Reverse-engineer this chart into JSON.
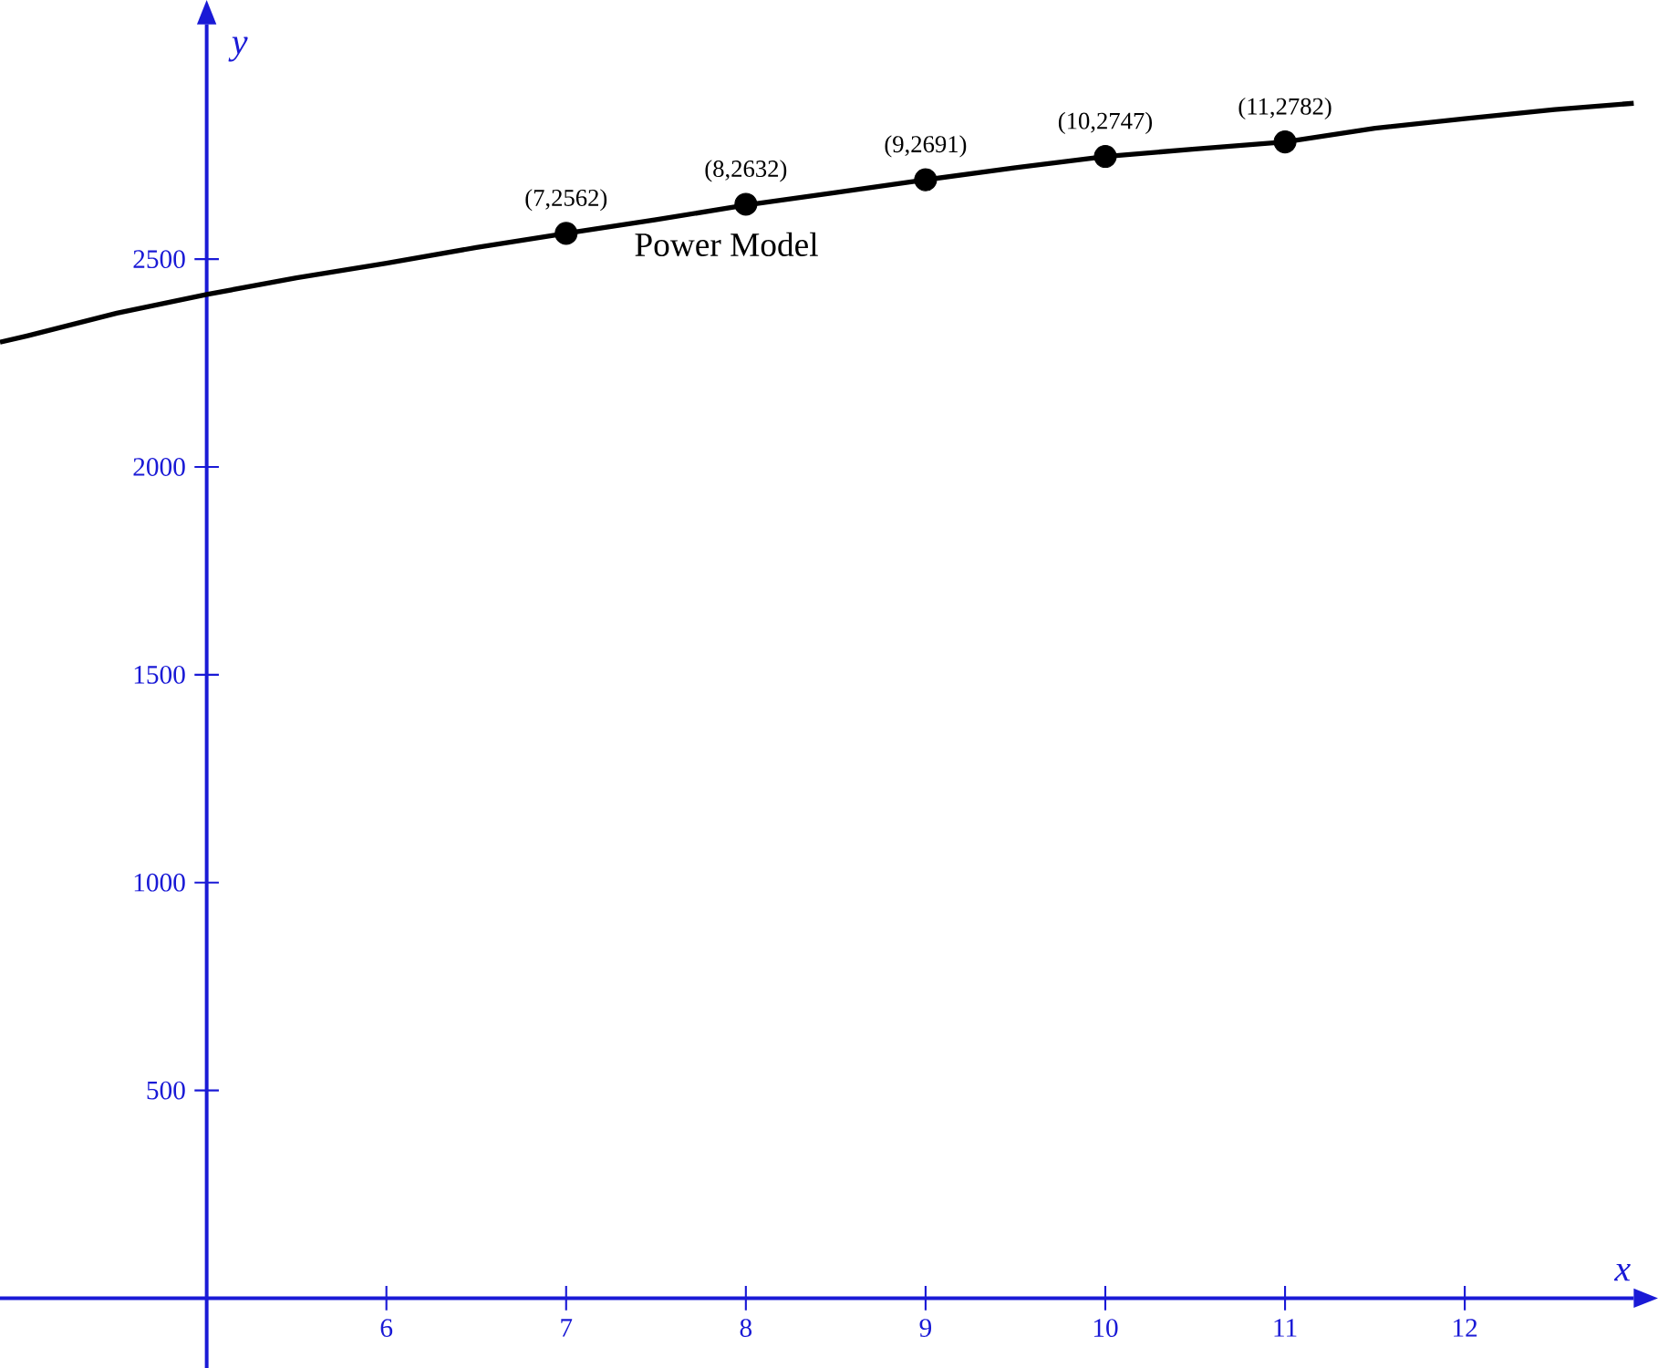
{
  "chart_data": {
    "type": "line",
    "xlabel": "x",
    "ylabel": "y",
    "xlim": [
      3.85,
      12.94
    ],
    "ylim": [
      -168,
      3065
    ],
    "xticks": [
      6,
      7,
      8,
      9,
      10,
      11,
      12
    ],
    "yticks": [
      500,
      1000,
      1500,
      2000,
      2500
    ],
    "grid": false,
    "legend": false,
    "series": [
      {
        "name": "Power Model",
        "color": "#000000",
        "x": [
          3.85,
          4,
          4.5,
          5,
          5.5,
          6,
          6.5,
          7,
          7.5,
          8,
          8.5,
          9,
          9.5,
          10,
          10.5,
          11,
          11.5,
          12,
          12.5,
          12.94
        ],
        "values": [
          2300,
          2315,
          2370,
          2415,
          2455,
          2490,
          2528,
          2562,
          2595,
          2630,
          2660,
          2691,
          2720,
          2747,
          2765,
          2782,
          2815,
          2838,
          2860,
          2875
        ]
      },
      {
        "type": "scatter",
        "color": "#000000",
        "x": [
          7,
          8,
          9,
          10,
          11
        ],
        "values": [
          2562,
          2632,
          2691,
          2747,
          2782
        ],
        "value_labels": [
          "(7,2562)",
          "(8,2632)",
          "(9,2691)",
          "(10,2747)",
          "(11,2782)"
        ]
      }
    ]
  }
}
